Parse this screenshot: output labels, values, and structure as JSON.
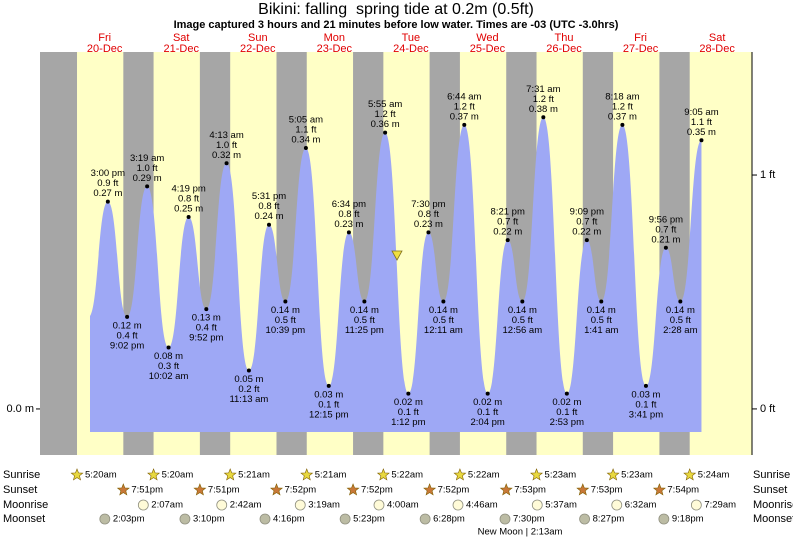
{
  "chart_data": {
    "type": "area",
    "title": "Bikini: falling  spring tide at 0.2m (0.5ft)",
    "subtitle": "Image captured 3 hours and 21 minutes before low water. Times are -03 (UTC -3.0hrs)",
    "area_color": "#9ea8f5",
    "night_color": "#a6a6a6",
    "day_color": "#ffffc6",
    "ylim": [
      -0.06,
      0.465
    ],
    "yticks": [
      {
        "value": 0,
        "label": "0.0 m"
      }
    ],
    "y2lim": [
      -0.197,
      1.526
    ],
    "y2ticks": [
      {
        "value": 0,
        "label": "0 ft"
      },
      {
        "value": 1,
        "label": "1 ft"
      }
    ],
    "row_labels": {
      "sunrise": "Sunrise",
      "sunset": "Sunset",
      "moonrise": "Moonrise",
      "moonset": "Moonset"
    },
    "moon_phase": "New Moon | 2:13am",
    "days": [
      {
        "name": "Fri",
        "date": "20-Dec",
        "sunrise": "5:20am",
        "sunset": "7:51pm",
        "moonrise": null,
        "moonset": "2:03pm",
        "tides": [
          {
            "time": "3:00 pm",
            "m": 0.27,
            "m_label": "0.27 m",
            "ft_label": "0.9 ft"
          },
          {
            "time": "9:02 pm",
            "m": 0.12,
            "m_label": "0.12 m",
            "ft_label": "0.4 ft"
          }
        ]
      },
      {
        "name": "Sat",
        "date": "21-Dec",
        "sunrise": "5:20am",
        "sunset": "7:51pm",
        "moonrise": "2:07am",
        "moonset": "3:10pm",
        "tides": [
          {
            "time": "3:19 am",
            "m": 0.29,
            "m_label": "0.29 m",
            "ft_label": "1.0 ft"
          },
          {
            "time": "10:02 am",
            "m": 0.08,
            "m_label": "0.08 m",
            "ft_label": "0.3 ft"
          },
          {
            "time": "4:19 pm",
            "m": 0.25,
            "m_label": "0.25 m",
            "ft_label": "0.8 ft"
          },
          {
            "time": "9:52 pm",
            "m": 0.13,
            "m_label": "0.13 m",
            "ft_label": "0.4 ft"
          }
        ]
      },
      {
        "name": "Sun",
        "date": "22-Dec",
        "sunrise": "5:21am",
        "sunset": "7:52pm",
        "moonrise": "2:42am",
        "moonset": "4:16pm",
        "tides": [
          {
            "time": "4:13 am",
            "m": 0.32,
            "m_label": "0.32 m",
            "ft_label": "1.0 ft"
          },
          {
            "time": "11:13 am",
            "m": 0.05,
            "m_label": "0.05 m",
            "ft_label": "0.2 ft"
          },
          {
            "time": "5:31 pm",
            "m": 0.24,
            "m_label": "0.24 m",
            "ft_label": "0.8 ft"
          },
          {
            "time": "10:39 pm",
            "m": 0.14,
            "m_label": "0.14 m",
            "ft_label": "0.5 ft"
          }
        ]
      },
      {
        "name": "Mon",
        "date": "23-Dec",
        "sunrise": "5:21am",
        "sunset": "7:52pm",
        "moonrise": "3:19am",
        "moonset": "5:23pm",
        "tides": [
          {
            "time": "5:05 am",
            "m": 0.34,
            "m_label": "0.34 m",
            "ft_label": "1.1 ft"
          },
          {
            "time": "12:15 pm",
            "m": 0.03,
            "m_label": "0.03 m",
            "ft_label": "0.1 ft"
          },
          {
            "time": "6:34 pm",
            "m": 0.23,
            "m_label": "0.23 m",
            "ft_label": "0.8 ft"
          },
          {
            "time": "11:25 pm",
            "m": 0.14,
            "m_label": "0.14 m",
            "ft_label": "0.5 ft"
          }
        ]
      },
      {
        "name": "Tue",
        "date": "24-Dec",
        "sunrise": "5:22am",
        "sunset": "7:52pm",
        "moonrise": "4:00am",
        "moonset": "6:28pm",
        "tides": [
          {
            "time": "5:55 am",
            "m": 0.36,
            "m_label": "0.36 m",
            "ft_label": "1.2 ft"
          },
          {
            "time": "1:12 pm",
            "m": 0.02,
            "m_label": "0.02 m",
            "ft_label": "0.1 ft"
          },
          {
            "time": "7:30 pm",
            "m": 0.23,
            "m_label": "0.23 m",
            "ft_label": "0.8 ft"
          }
        ]
      },
      {
        "name": "Wed",
        "date": "25-Dec",
        "sunrise": "5:22am",
        "sunset": "7:53pm",
        "moonrise": "4:46am",
        "moonset": "7:30pm",
        "tides": [
          {
            "time": "12:11 am",
            "m": 0.14,
            "m_label": "0.14 m",
            "ft_label": "0.5 ft"
          },
          {
            "time": "6:44 am",
            "m": 0.37,
            "m_label": "0.37 m",
            "ft_label": "1.2 ft"
          },
          {
            "time": "2:04 pm",
            "m": 0.02,
            "m_label": "0.02 m",
            "ft_label": "0.1 ft"
          },
          {
            "time": "8:21 pm",
            "m": 0.22,
            "m_label": "0.22 m",
            "ft_label": "0.7 ft"
          }
        ]
      },
      {
        "name": "Thu",
        "date": "26-Dec",
        "sunrise": "5:23am",
        "sunset": "7:53pm",
        "moonrise": "5:37am",
        "moonset": "8:27pm",
        "tides": [
          {
            "time": "12:56 am",
            "m": 0.14,
            "m_label": "0.14 m",
            "ft_label": "0.5 ft"
          },
          {
            "time": "7:31 am",
            "m": 0.38,
            "m_label": "0.38 m",
            "ft_label": "1.2 ft"
          },
          {
            "time": "2:53 pm",
            "m": 0.02,
            "m_label": "0.02 m",
            "ft_label": "0.1 ft"
          },
          {
            "time": "9:09 pm",
            "m": 0.22,
            "m_label": "0.22 m",
            "ft_label": "0.7 ft"
          }
        ]
      },
      {
        "name": "Fri",
        "date": "27-Dec",
        "sunrise": "5:23am",
        "sunset": "7:54pm",
        "moonrise": "6:32am",
        "moonset": "9:18pm",
        "tides": [
          {
            "time": "1:41 am",
            "m": 0.14,
            "m_label": "0.14 m",
            "ft_label": "0.5 ft"
          },
          {
            "time": "8:18 am",
            "m": 0.37,
            "m_label": "0.37 m",
            "ft_label": "1.2 ft"
          },
          {
            "time": "3:41 pm",
            "m": 0.03,
            "m_label": "0.03 m",
            "ft_label": "0.1 ft"
          },
          {
            "time": "9:56 pm",
            "m": 0.21,
            "m_label": "0.21 m",
            "ft_label": "0.7 ft"
          }
        ]
      },
      {
        "name": "Sat",
        "date": "28-Dec",
        "sunrise": "5:24am",
        "sunset": null,
        "moonrise": "7:29am",
        "moonset": null,
        "tides": [
          {
            "time": "2:28 am",
            "m": 0.14,
            "m_label": "0.14 m",
            "ft_label": "0.5 ft"
          },
          {
            "time": "9:05 am",
            "m": 0.35,
            "m_label": "0.35 m",
            "ft_label": "1.1 ft"
          }
        ]
      }
    ]
  }
}
